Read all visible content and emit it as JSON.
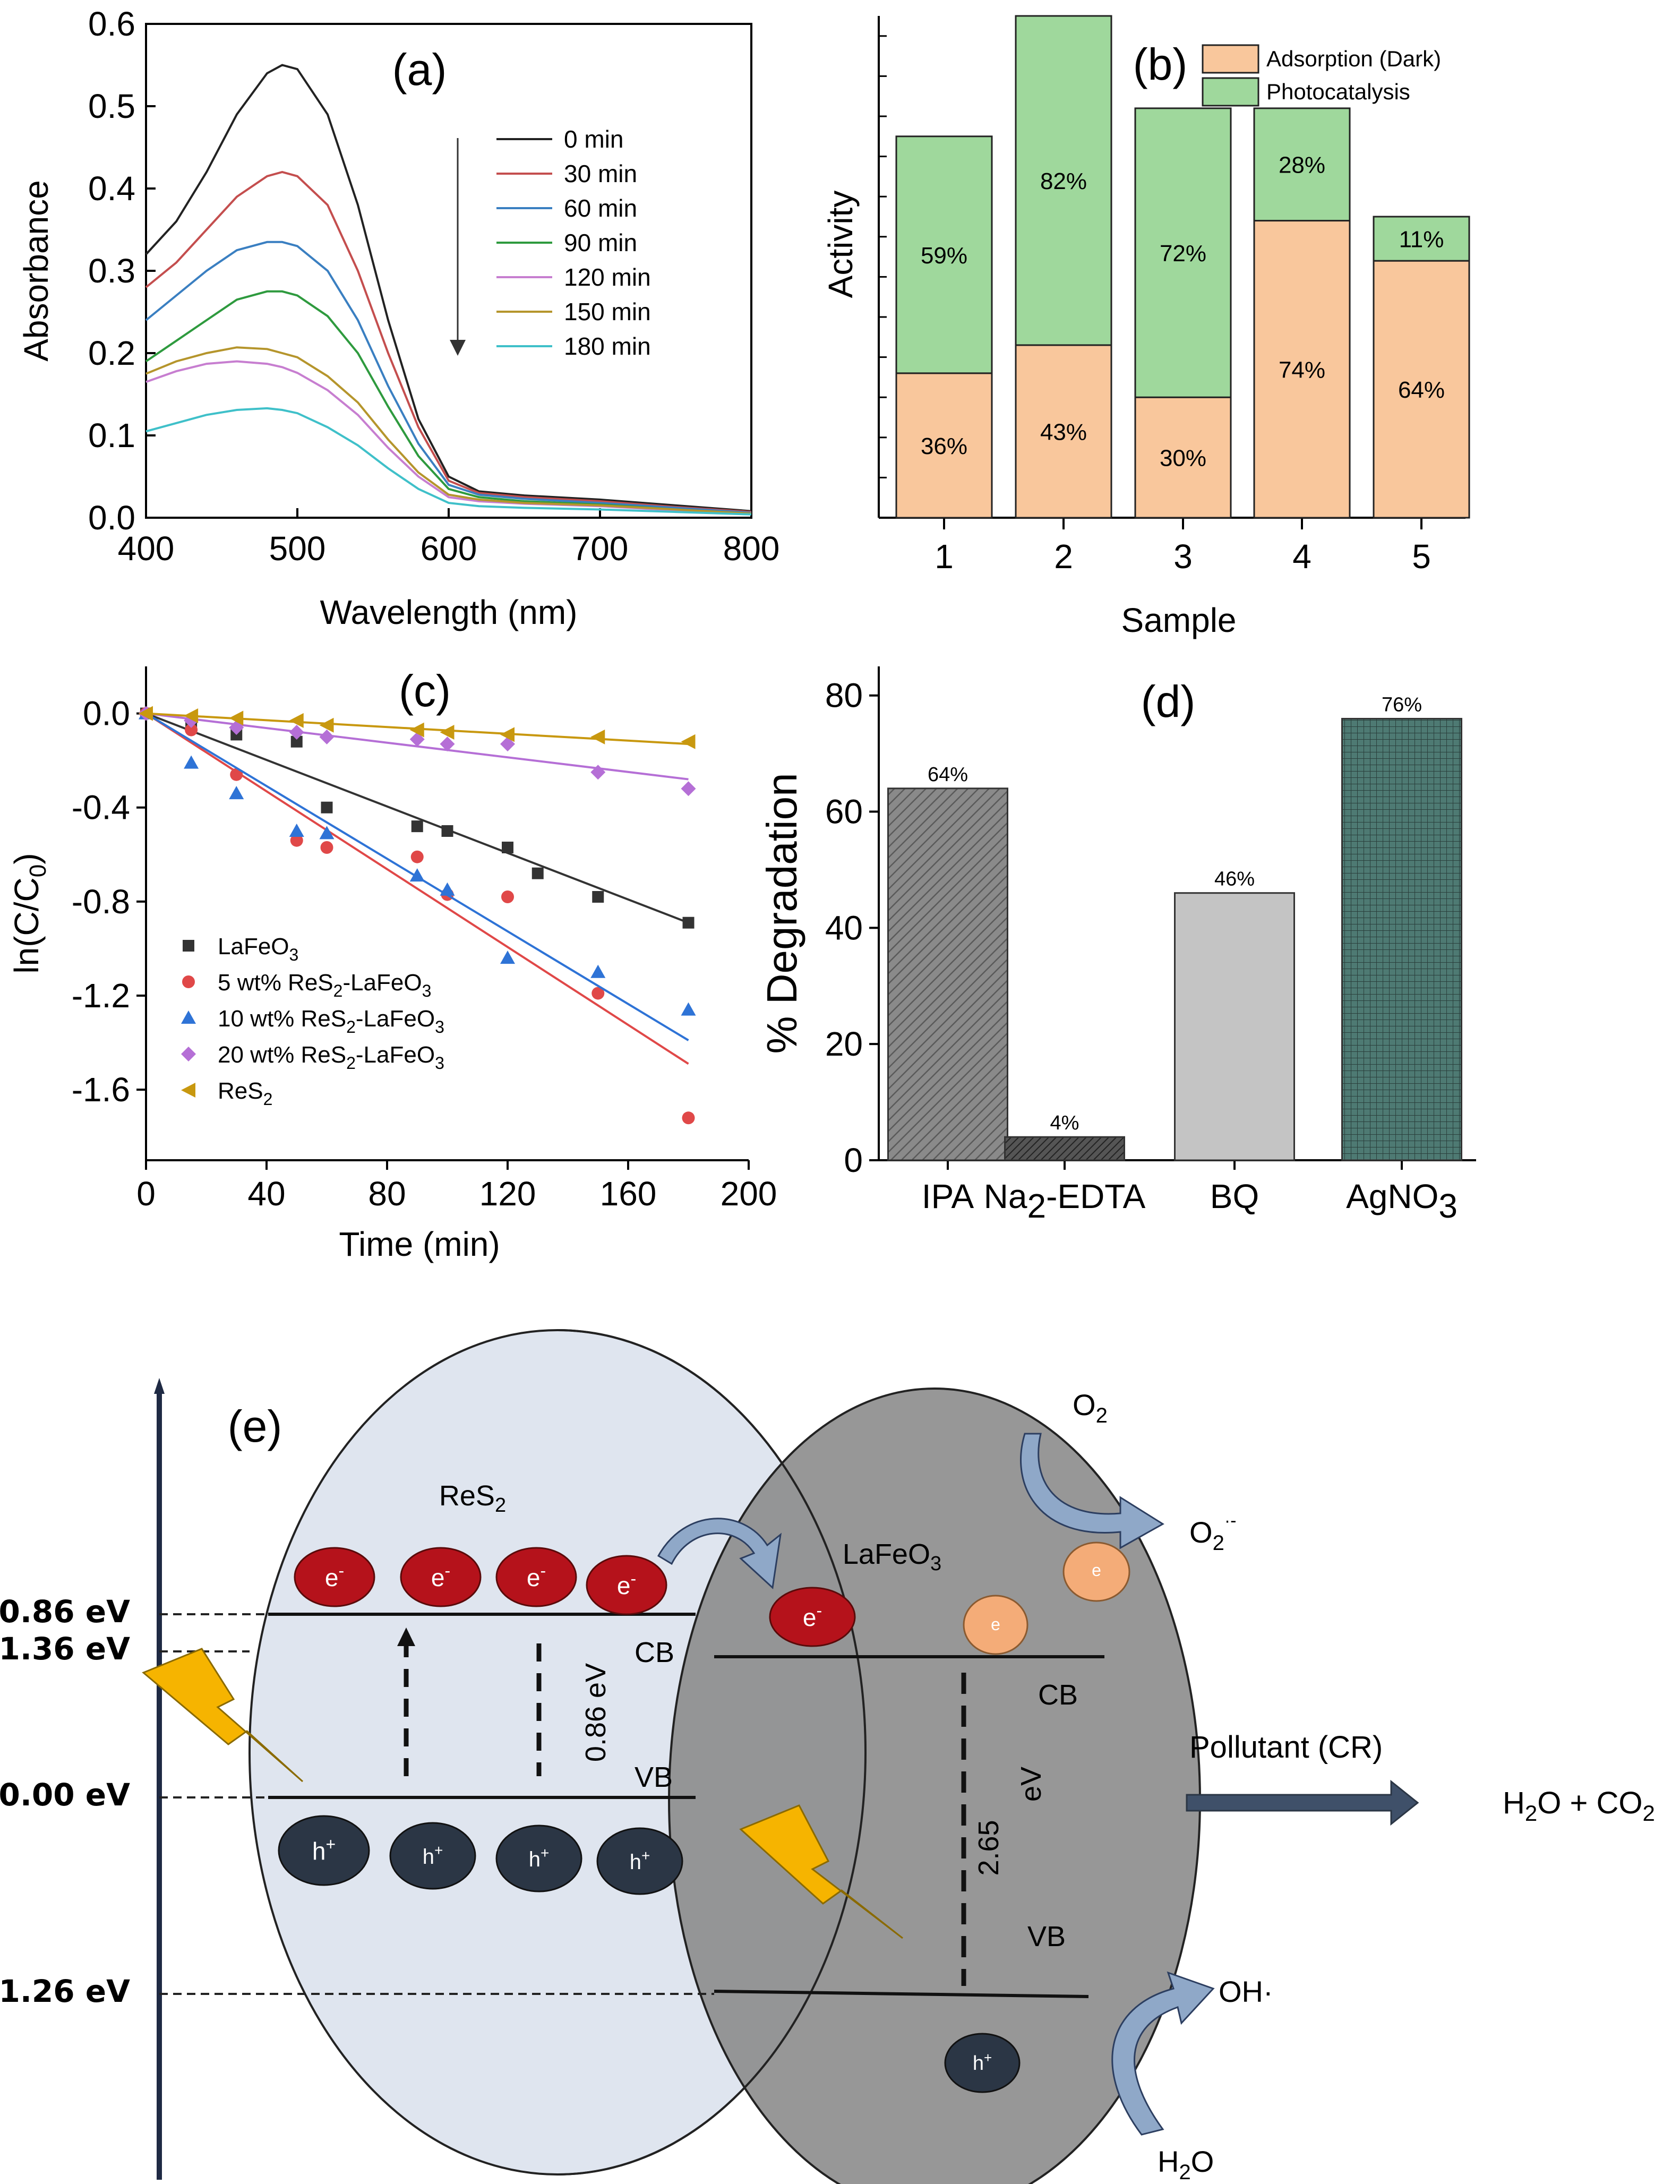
{
  "chart_data": [
    {
      "type": "line",
      "panel": "(a)",
      "xlabel": "Wavelength (nm)",
      "ylabel": "Absorbance",
      "xlim": [
        400,
        800
      ],
      "ylim": [
        0.0,
        0.6
      ],
      "xticks": [
        "400",
        "500",
        "600",
        "700",
        "800"
      ],
      "yticks": [
        "0.0",
        "0.1",
        "0.2",
        "0.3",
        "0.4",
        "0.5",
        "0.6"
      ],
      "legend": "top-right",
      "x": [
        400,
        420,
        440,
        460,
        480,
        490,
        500,
        520,
        540,
        560,
        580,
        600,
        620,
        650,
        700,
        750,
        800
      ],
      "series": [
        {
          "name": "0  min",
          "color": "#222222",
          "values": [
            0.32,
            0.36,
            0.42,
            0.49,
            0.54,
            0.55,
            0.545,
            0.49,
            0.38,
            0.24,
            0.12,
            0.05,
            0.032,
            0.027,
            0.022,
            0.015,
            0.008
          ]
        },
        {
          "name": "30 min",
          "color": "#c44e4e",
          "values": [
            0.28,
            0.31,
            0.35,
            0.39,
            0.415,
            0.42,
            0.415,
            0.38,
            0.3,
            0.2,
            0.11,
            0.045,
            0.03,
            0.025,
            0.02,
            0.013,
            0.007
          ]
        },
        {
          "name": "60 min",
          "color": "#3a7fc1",
          "values": [
            0.24,
            0.27,
            0.3,
            0.325,
            0.335,
            0.335,
            0.33,
            0.3,
            0.24,
            0.16,
            0.09,
            0.04,
            0.028,
            0.023,
            0.018,
            0.012,
            0.006
          ]
        },
        {
          "name": "90 min",
          "color": "#2e9a3e",
          "values": [
            0.19,
            0.215,
            0.24,
            0.265,
            0.275,
            0.275,
            0.27,
            0.245,
            0.2,
            0.135,
            0.075,
            0.035,
            0.025,
            0.02,
            0.016,
            0.01,
            0.005
          ]
        },
        {
          "name": "120 min",
          "color": "#c77ed0",
          "values": [
            0.165,
            0.178,
            0.187,
            0.19,
            0.187,
            0.183,
            0.176,
            0.155,
            0.125,
            0.085,
            0.05,
            0.025,
            0.02,
            0.017,
            0.014,
            0.009,
            0.005
          ]
        },
        {
          "name": "150 min",
          "color": "#b5952c",
          "values": [
            0.175,
            0.19,
            0.2,
            0.207,
            0.205,
            0.2,
            0.195,
            0.172,
            0.14,
            0.095,
            0.055,
            0.028,
            0.022,
            0.018,
            0.015,
            0.01,
            0.005
          ]
        },
        {
          "name": "180 min",
          "color": "#3fc0c9",
          "values": [
            0.105,
            0.115,
            0.125,
            0.131,
            0.133,
            0.131,
            0.127,
            0.11,
            0.088,
            0.06,
            0.035,
            0.018,
            0.014,
            0.012,
            0.01,
            0.007,
            0.004
          ]
        }
      ],
      "annotation": "arrow indicates decreasing absorbance with time"
    },
    {
      "type": "bar",
      "panel": "(b)",
      "stacked": true,
      "xlabel": "Sample",
      "ylabel": "Activity",
      "categories": [
        "1",
        "2",
        "3",
        "4",
        "5"
      ],
      "ylim": [
        0,
        125
      ],
      "legend": "top-right",
      "series": [
        {
          "name": "Adsorption (Dark)",
          "color": "#f9c79c",
          "values": [
            36,
            43,
            30,
            74,
            64
          ],
          "labels": [
            "36%",
            "43%",
            "30%",
            "74%",
            "64%"
          ]
        },
        {
          "name": "Photocatalysis",
          "color": "#9fd89c",
          "values": [
            59,
            82,
            72,
            28,
            11
          ],
          "labels": [
            "59%",
            "82%",
            "72%",
            "28%",
            "11%"
          ]
        }
      ]
    },
    {
      "type": "scatter",
      "panel": "(c)",
      "xlabel": "Time (min)",
      "ylabel": "ln(C/C0)",
      "xlim": [
        0,
        200
      ],
      "ylim": [
        -1.9,
        0.2
      ],
      "xticks": [
        "0",
        "40",
        "80",
        "120",
        "160",
        "200"
      ],
      "yticks": [
        "0.0",
        "-0.4",
        "-0.8",
        "-1.2",
        "-1.6"
      ],
      "legend": "bottom-left",
      "series": [
        {
          "name": "LaFeO3",
          "color": "#333333",
          "marker": "square",
          "x": [
            0,
            15,
            30,
            50,
            60,
            90,
            100,
            120,
            130,
            150,
            180
          ],
          "y": [
            0.0,
            -0.05,
            -0.09,
            -0.12,
            -0.4,
            -0.48,
            -0.5,
            -0.57,
            -0.68,
            -0.78,
            -0.89
          ],
          "fit": [
            0.0,
            -0.89
          ]
        },
        {
          "name": "5 wt% ReS2-LaFeO3",
          "color": "#e04848",
          "marker": "circle",
          "x": [
            0,
            15,
            30,
            50,
            60,
            90,
            100,
            120,
            150,
            180
          ],
          "y": [
            0.0,
            -0.07,
            -0.26,
            -0.54,
            -0.57,
            -0.61,
            -0.77,
            -0.78,
            -1.19,
            -1.72
          ],
          "fit": [
            0.0,
            -1.49
          ]
        },
        {
          "name": "10 wt% ReS2-LaFeO3",
          "color": "#2e73d6",
          "marker": "triangle-up",
          "x": [
            0,
            15,
            30,
            50,
            60,
            90,
            100,
            120,
            150,
            180
          ],
          "y": [
            0.0,
            -0.21,
            -0.34,
            -0.5,
            -0.51,
            -0.69,
            -0.75,
            -1.04,
            -1.1,
            -1.26
          ],
          "fit": [
            0.0,
            -1.39
          ]
        },
        {
          "name": "20 wt% ReS2-LaFeO3",
          "color": "#b56fd6",
          "marker": "diamond",
          "x": [
            0,
            15,
            30,
            50,
            60,
            90,
            100,
            120,
            150,
            180
          ],
          "y": [
            0.0,
            -0.03,
            -0.06,
            -0.08,
            -0.1,
            -0.11,
            -0.13,
            -0.13,
            -0.25,
            -0.32
          ],
          "fit": [
            0.0,
            -0.28
          ]
        },
        {
          "name": "ReS2",
          "color": "#c8980f",
          "marker": "triangle-left",
          "x": [
            0,
            15,
            30,
            50,
            60,
            90,
            100,
            120,
            150,
            180
          ],
          "y": [
            0.0,
            -0.01,
            -0.02,
            -0.03,
            -0.05,
            -0.07,
            -0.08,
            -0.09,
            -0.1,
            -0.12
          ],
          "fit": [
            0.0,
            -0.13
          ]
        }
      ]
    },
    {
      "type": "bar",
      "panel": "(d)",
      "xlabel": "",
      "ylabel": "% Degradation",
      "categories": [
        "IPA",
        "Na2-EDTA",
        "BQ",
        "AgNO3"
      ],
      "values": [
        64,
        4,
        46,
        76
      ],
      "labels": [
        "64%",
        "4%",
        "46%",
        "76%"
      ],
      "colors": [
        "#7a7a7a",
        "#3f3f3f",
        "#bdbdbd",
        "#3f6660"
      ],
      "ylim": [
        0,
        85
      ],
      "yticks": [
        "0",
        "20",
        "40",
        "60",
        "80"
      ]
    }
  ],
  "panel_labels": {
    "a": "(a)",
    "b": "(b)",
    "c": "(c)",
    "d": "(d)",
    "e": "(e)"
  },
  "axis_text": {
    "a_xlabel": "Wavelength (nm)",
    "a_ylabel": "Absorbance",
    "b_xlabel": "Sample",
    "b_ylabel": "Activity",
    "c_xlabel": "Time (min)",
    "c_ylabel_main": "ln(C/C",
    "c_ylabel_sub": "0",
    "c_ylabel_close": ")",
    "d_ylabel": "% Degradation"
  },
  "legend_c": [
    {
      "pre": "LaFeO",
      "sub": "3",
      "post": "",
      "sub2": "",
      "tail": ""
    },
    {
      "pre": "5 wt% ReS",
      "sub": "2",
      "post": "-LaFeO",
      "sub2": "3",
      "tail": ""
    },
    {
      "pre": "10 wt% ReS",
      "sub": "2",
      "post": "-LaFeO",
      "sub2": "3",
      "tail": ""
    },
    {
      "pre": "20 wt% ReS",
      "sub": "2",
      "post": "-LaFeO",
      "sub2": "3",
      "tail": ""
    },
    {
      "pre": "ReS",
      "sub": "2",
      "post": "",
      "sub2": "",
      "tail": ""
    }
  ],
  "d_tick_parts": {
    "na_pre": "Na",
    "na_sub": "2",
    "na_post": "-EDTA",
    "ag_pre": "AgNO",
    "ag_sub": "3"
  },
  "diagram": {
    "res2_pre": "ReS",
    "res2_sub": "2",
    "lafeo_pre": "LaFeO",
    "lafeo_sub": "3",
    "levels": [
      "0.86 eV",
      "1.36 eV",
      "0.00 eV",
      "1.26 eV"
    ],
    "cb": "CB",
    "vb": "VB",
    "gap_res2": "0.86 eV",
    "gap_lafeo_num": "2.65",
    "gap_lafeo_unit": "eV",
    "electron": "e",
    "electron_sup": "-",
    "hole": "h",
    "hole_sup": "+",
    "o2_pre": "O",
    "o2_sub": "2",
    "o2rad_pre": "O",
    "o2rad_sub": "2",
    "o2rad_sup": "·-",
    "pollutant": "Pollutant (CR)",
    "products_a": "H",
    "products_a_sub": "2",
    "products_b": "O + CO",
    "products_b_sub": "2",
    "oh": "OH·",
    "h2o_pre": "H",
    "h2o_sub": "2",
    "h2o_post": "O"
  }
}
